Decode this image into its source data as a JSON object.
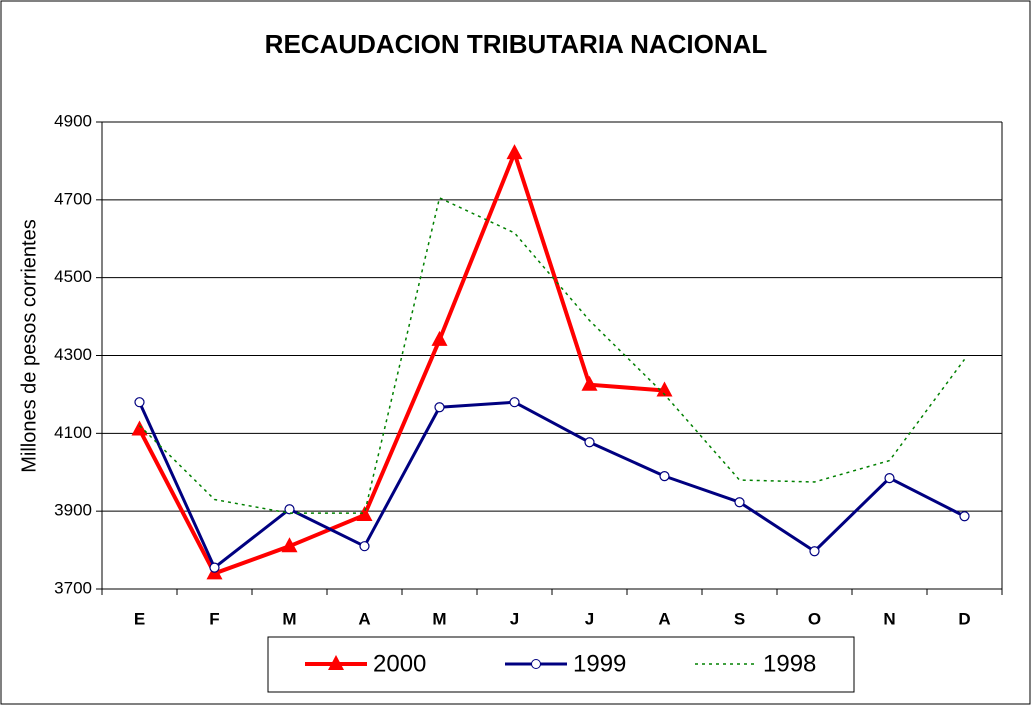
{
  "chart_data": {
    "type": "line",
    "title": "RECAUDACION TRIBUTARIA NACIONAL",
    "y_label": "Millones de pesos corrientes",
    "categories": [
      "E",
      "F",
      "M",
      "A",
      "M",
      "J",
      "J",
      "A",
      "S",
      "O",
      "N",
      "D"
    ],
    "series": [
      {
        "name": "2000",
        "color": "#ff0000",
        "marker": "triangle",
        "style": "solid",
        "width": 4,
        "values": [
          4110,
          3740,
          3810,
          3890,
          4340,
          4820,
          4225,
          4210,
          null,
          null,
          null,
          null
        ]
      },
      {
        "name": "1999",
        "color": "#000080",
        "marker": "circle",
        "style": "solid",
        "width": 3,
        "values": [
          4180,
          3755,
          3905,
          3810,
          4167,
          4180,
          4077,
          3990,
          3923,
          3797,
          3985,
          3887
        ]
      },
      {
        "name": "1998",
        "color": "#008000",
        "marker": "none",
        "style": "dotted",
        "width": 1.5,
        "values": [
          4120,
          3930,
          3895,
          3895,
          4705,
          4615,
          4390,
          4200,
          3980,
          3975,
          4030,
          4290
        ]
      }
    ],
    "ylim": [
      3700,
      4900
    ],
    "yticks": [
      3700,
      3900,
      4100,
      4300,
      4500,
      4700,
      4900
    ],
    "grid": true,
    "legend": "bottom"
  }
}
